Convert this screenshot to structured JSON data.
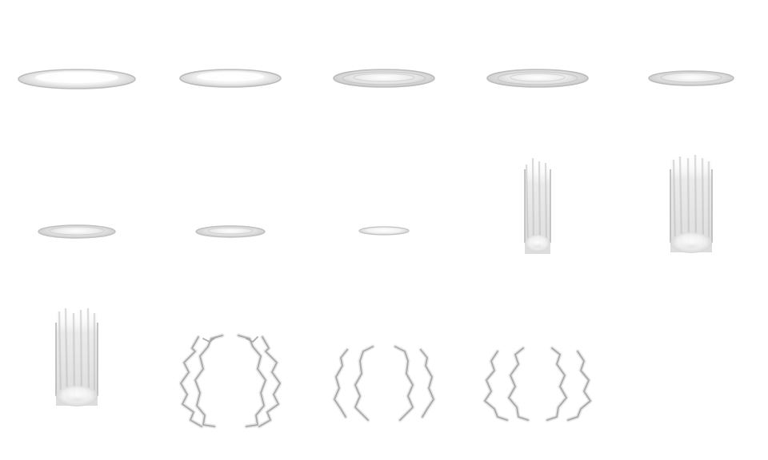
{
  "sheet": {
    "background": "#ffffff",
    "effect_color": "#c8c8c8",
    "rows": 3,
    "columns": 5,
    "frames": [
      {
        "kind": "ring",
        "ring_count": 1
      },
      {
        "kind": "ring",
        "ring_count": 1
      },
      {
        "kind": "ring",
        "ring_count": 3
      },
      {
        "kind": "ring",
        "ring_count": 3
      },
      {
        "kind": "ring",
        "ring_count": 2
      },
      {
        "kind": "ring",
        "ring_count": 2
      },
      {
        "kind": "ring",
        "ring_count": 2
      },
      {
        "kind": "ring",
        "ring_count": 1
      },
      {
        "kind": "pillar"
      },
      {
        "kind": "pillar"
      },
      {
        "kind": "pillar"
      },
      {
        "kind": "lightning"
      },
      {
        "kind": "lightning"
      },
      {
        "kind": "lightning"
      },
      {
        "kind": "empty"
      }
    ]
  }
}
